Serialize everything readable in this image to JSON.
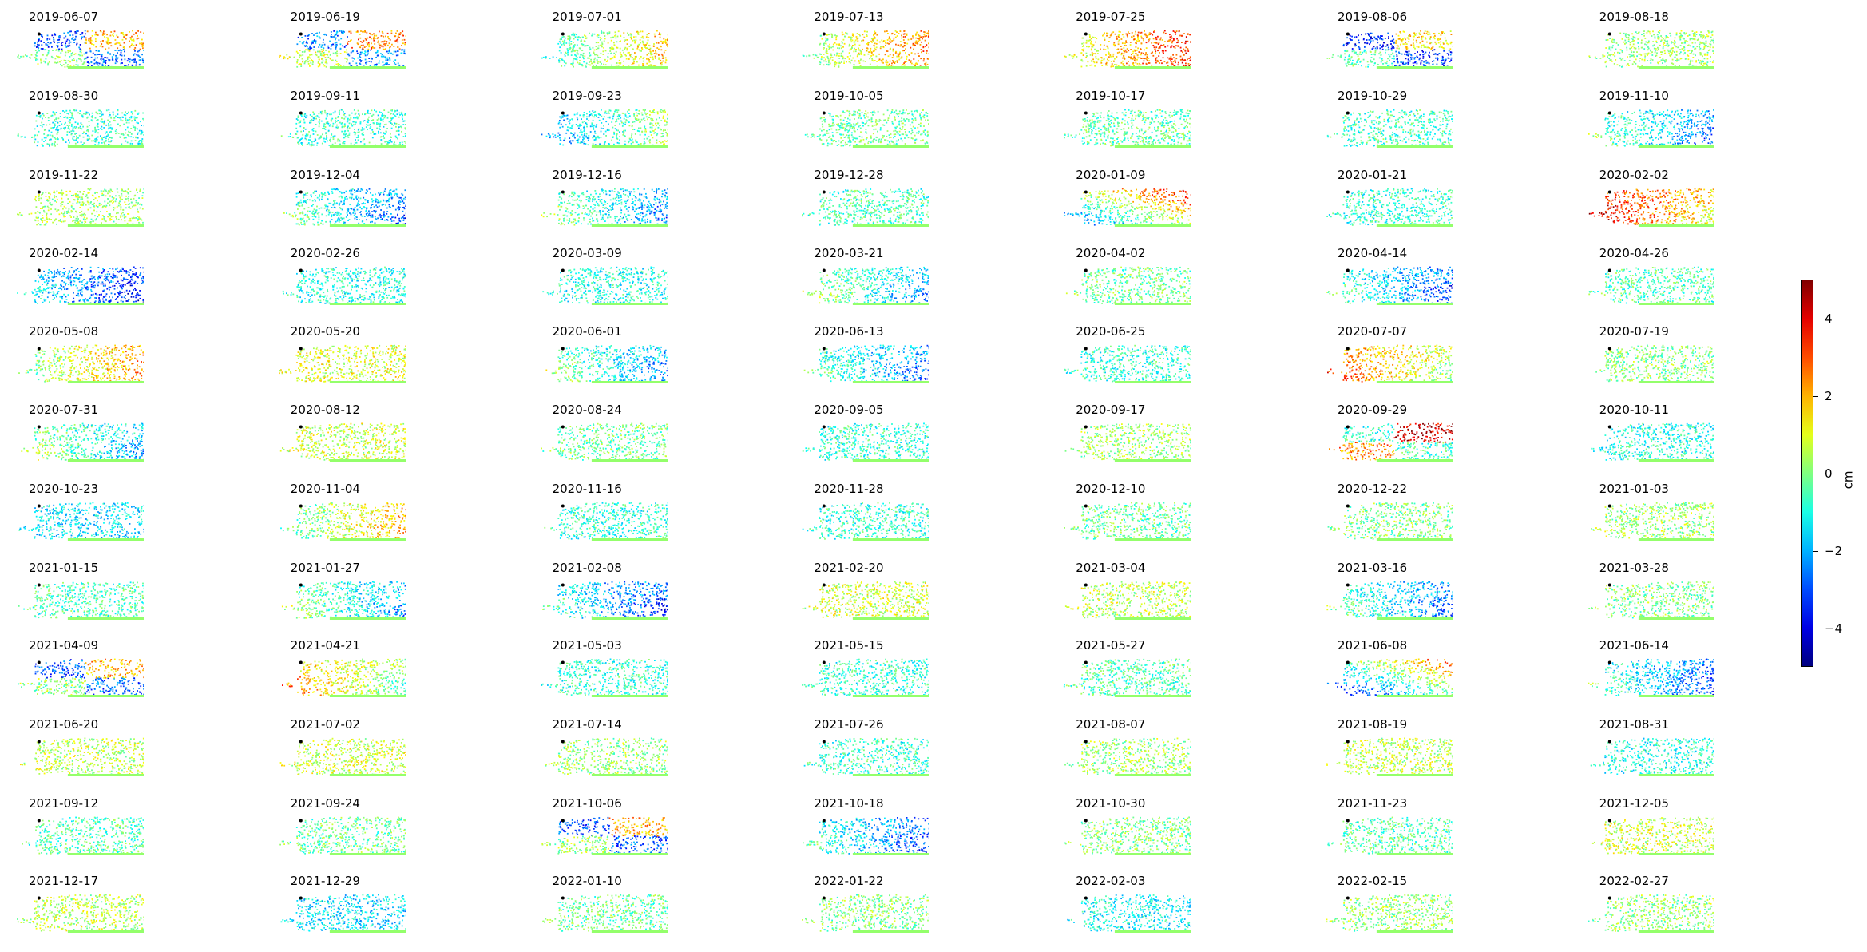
{
  "figure": {
    "colorbar": {
      "label": "cm",
      "range": [
        -5,
        5
      ],
      "colormap": "jet",
      "ticks": [
        -4,
        -2,
        0,
        2,
        4
      ],
      "tick_labels": [
        "−4",
        "−2",
        "0",
        "2",
        "4"
      ]
    }
  },
  "chart_data": {
    "type": "heatmap",
    "layout": "small multiples, 12 rows x 7 columns",
    "unit": "cm",
    "colormap": "jet",
    "vmin": -5,
    "vmax": 5,
    "axes_visible": false,
    "reference_point_marker": "black dot",
    "panels": [
      {
        "date": "2019-06-07",
        "mean": -1.0,
        "pattern": "mixed"
      },
      {
        "date": "2019-06-19",
        "mean": -0.5,
        "pattern": "mixed"
      },
      {
        "date": "2019-07-01",
        "mean": 0.2,
        "pattern": "east"
      },
      {
        "date": "2019-07-13",
        "mean": 1.0,
        "pattern": "east"
      },
      {
        "date": "2019-07-25",
        "mean": 1.8,
        "pattern": "east"
      },
      {
        "date": "2019-08-06",
        "mean": -1.5,
        "pattern": "mixed"
      },
      {
        "date": "2019-08-18",
        "mean": 0.2,
        "pattern": "uniform"
      },
      {
        "date": "2019-08-30",
        "mean": -0.8,
        "pattern": "uniform"
      },
      {
        "date": "2019-09-11",
        "mean": -0.8,
        "pattern": "uniform"
      },
      {
        "date": "2019-09-23",
        "mean": -1.2,
        "pattern": "east"
      },
      {
        "date": "2019-10-05",
        "mean": -0.3,
        "pattern": "uniform"
      },
      {
        "date": "2019-10-17",
        "mean": -0.4,
        "pattern": "uniform"
      },
      {
        "date": "2019-10-29",
        "mean": -0.6,
        "pattern": "uniform"
      },
      {
        "date": "2019-11-10",
        "mean": -1.5,
        "pattern": "west"
      },
      {
        "date": "2019-11-22",
        "mean": 0.3,
        "pattern": "uniform"
      },
      {
        "date": "2019-12-04",
        "mean": -1.5,
        "pattern": "west"
      },
      {
        "date": "2019-12-16",
        "mean": -1.2,
        "pattern": "west"
      },
      {
        "date": "2019-12-28",
        "mean": -0.6,
        "pattern": "uniform"
      },
      {
        "date": "2020-01-09",
        "mean": -0.5,
        "pattern": "diagonal"
      },
      {
        "date": "2020-01-21",
        "mean": -0.8,
        "pattern": "uniform"
      },
      {
        "date": "2020-02-02",
        "mean": 2.5,
        "pattern": "west"
      },
      {
        "date": "2020-02-14",
        "mean": -2.5,
        "pattern": "west"
      },
      {
        "date": "2020-02-26",
        "mean": -1.0,
        "pattern": "uniform"
      },
      {
        "date": "2020-03-09",
        "mean": -1.0,
        "pattern": "uniform"
      },
      {
        "date": "2020-03-21",
        "mean": -1.0,
        "pattern": "west"
      },
      {
        "date": "2020-04-02",
        "mean": -0.2,
        "pattern": "uniform"
      },
      {
        "date": "2020-04-14",
        "mean": -1.8,
        "pattern": "west"
      },
      {
        "date": "2020-04-26",
        "mean": -0.5,
        "pattern": "uniform"
      },
      {
        "date": "2020-05-08",
        "mean": 0.8,
        "pattern": "east"
      },
      {
        "date": "2020-05-20",
        "mean": 1.0,
        "pattern": "uniform"
      },
      {
        "date": "2020-06-01",
        "mean": -1.2,
        "pattern": "west"
      },
      {
        "date": "2020-06-13",
        "mean": -1.5,
        "pattern": "west"
      },
      {
        "date": "2020-06-25",
        "mean": -0.8,
        "pattern": "uniform"
      },
      {
        "date": "2020-07-07",
        "mean": 1.5,
        "pattern": "west"
      },
      {
        "date": "2020-07-19",
        "mean": 0.0,
        "pattern": "uniform"
      },
      {
        "date": "2020-07-31",
        "mean": -0.8,
        "pattern": "west"
      },
      {
        "date": "2020-08-12",
        "mean": 0.8,
        "pattern": "uniform"
      },
      {
        "date": "2020-08-24",
        "mean": -0.2,
        "pattern": "uniform"
      },
      {
        "date": "2020-09-05",
        "mean": -0.8,
        "pattern": "uniform"
      },
      {
        "date": "2020-09-17",
        "mean": 0.3,
        "pattern": "uniform"
      },
      {
        "date": "2020-09-29",
        "mean": 1.2,
        "pattern": "mixed"
      },
      {
        "date": "2020-10-11",
        "mean": -1.0,
        "pattern": "uniform"
      },
      {
        "date": "2020-10-23",
        "mean": -1.5,
        "pattern": "uniform"
      },
      {
        "date": "2020-11-04",
        "mean": 0.5,
        "pattern": "east"
      },
      {
        "date": "2020-11-16",
        "mean": -0.8,
        "pattern": "uniform"
      },
      {
        "date": "2020-11-28",
        "mean": -0.8,
        "pattern": "uniform"
      },
      {
        "date": "2020-12-10",
        "mean": -0.3,
        "pattern": "uniform"
      },
      {
        "date": "2020-12-22",
        "mean": 0.0,
        "pattern": "uniform"
      },
      {
        "date": "2021-01-03",
        "mean": 0.3,
        "pattern": "uniform"
      },
      {
        "date": "2021-01-15",
        "mean": -0.6,
        "pattern": "uniform"
      },
      {
        "date": "2021-01-27",
        "mean": -1.0,
        "pattern": "west"
      },
      {
        "date": "2021-02-08",
        "mean": -2.0,
        "pattern": "west"
      },
      {
        "date": "2021-02-20",
        "mean": 0.8,
        "pattern": "uniform"
      },
      {
        "date": "2021-03-04",
        "mean": 0.6,
        "pattern": "uniform"
      },
      {
        "date": "2021-03-16",
        "mean": -1.5,
        "pattern": "west"
      },
      {
        "date": "2021-03-28",
        "mean": 0.0,
        "pattern": "uniform"
      },
      {
        "date": "2021-04-09",
        "mean": -1.0,
        "pattern": "mixed"
      },
      {
        "date": "2021-04-21",
        "mean": 1.0,
        "pattern": "west"
      },
      {
        "date": "2021-05-03",
        "mean": -0.8,
        "pattern": "uniform"
      },
      {
        "date": "2021-05-15",
        "mean": -0.8,
        "pattern": "uniform"
      },
      {
        "date": "2021-05-27",
        "mean": -0.5,
        "pattern": "uniform"
      },
      {
        "date": "2021-06-08",
        "mean": -1.5,
        "pattern": "diagonal"
      },
      {
        "date": "2021-06-14",
        "mean": -1.8,
        "pattern": "west"
      },
      {
        "date": "2021-06-20",
        "mean": 0.6,
        "pattern": "uniform"
      },
      {
        "date": "2021-07-02",
        "mean": 0.8,
        "pattern": "uniform"
      },
      {
        "date": "2021-07-14",
        "mean": 0.2,
        "pattern": "uniform"
      },
      {
        "date": "2021-07-26",
        "mean": -0.8,
        "pattern": "uniform"
      },
      {
        "date": "2021-08-07",
        "mean": 0.3,
        "pattern": "uniform"
      },
      {
        "date": "2021-08-19",
        "mean": 0.6,
        "pattern": "uniform"
      },
      {
        "date": "2021-08-31",
        "mean": -1.0,
        "pattern": "uniform"
      },
      {
        "date": "2021-09-12",
        "mean": -0.5,
        "pattern": "uniform"
      },
      {
        "date": "2021-09-24",
        "mean": -0.2,
        "pattern": "uniform"
      },
      {
        "date": "2021-10-06",
        "mean": -1.0,
        "pattern": "mixed"
      },
      {
        "date": "2021-10-18",
        "mean": -1.8,
        "pattern": "west"
      },
      {
        "date": "2021-10-30",
        "mean": 0.0,
        "pattern": "uniform"
      },
      {
        "date": "2021-11-23",
        "mean": -0.5,
        "pattern": "uniform"
      },
      {
        "date": "2021-12-05",
        "mean": 0.8,
        "pattern": "uniform"
      },
      {
        "date": "2021-12-17",
        "mean": 0.6,
        "pattern": "uniform"
      },
      {
        "date": "2021-12-29",
        "mean": -1.5,
        "pattern": "uniform"
      },
      {
        "date": "2022-01-10",
        "mean": -0.3,
        "pattern": "uniform"
      },
      {
        "date": "2022-01-22",
        "mean": 0.0,
        "pattern": "uniform"
      },
      {
        "date": "2022-02-03",
        "mean": -1.2,
        "pattern": "uniform"
      },
      {
        "date": "2022-02-15",
        "mean": 0.2,
        "pattern": "uniform"
      },
      {
        "date": "2022-02-27",
        "mean": 0.2,
        "pattern": "uniform"
      }
    ]
  }
}
